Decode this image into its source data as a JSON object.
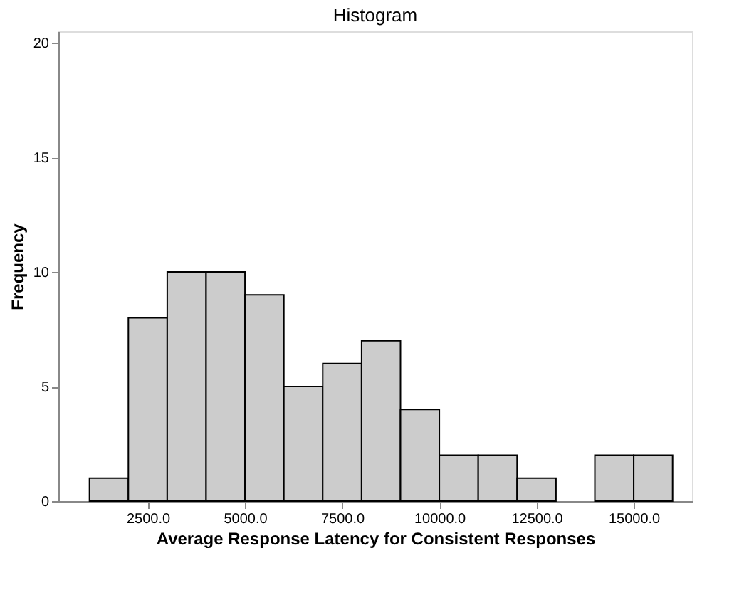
{
  "chart_data": {
    "type": "histogram",
    "title": "Histogram",
    "xlabel": "Average Response Latency for Consistent Responses",
    "ylabel": "Frequency",
    "bins": [
      1000,
      2000,
      3000,
      4000,
      5000,
      6000,
      7000,
      8000,
      9000,
      10000,
      11000,
      12000,
      13000,
      14000,
      15000,
      16000
    ],
    "values": [
      1,
      8,
      10,
      10,
      9,
      5,
      6,
      7,
      4,
      2,
      2,
      1,
      0,
      2,
      2
    ],
    "color": "#cccccc",
    "xlim": [
      200,
      16500
    ],
    "ylim": [
      0,
      20.5
    ],
    "xticks": [
      {
        "value": 2500,
        "label": "2500.0"
      },
      {
        "value": 5000,
        "label": "5000.0"
      },
      {
        "value": 7500,
        "label": "7500.0"
      },
      {
        "value": 10000,
        "label": "10000.0"
      },
      {
        "value": 12500,
        "label": "12500.0"
      },
      {
        "value": 15000,
        "label": "15000.0"
      }
    ],
    "yticks": [
      0,
      5,
      10,
      15,
      20
    ],
    "grid": false
  }
}
